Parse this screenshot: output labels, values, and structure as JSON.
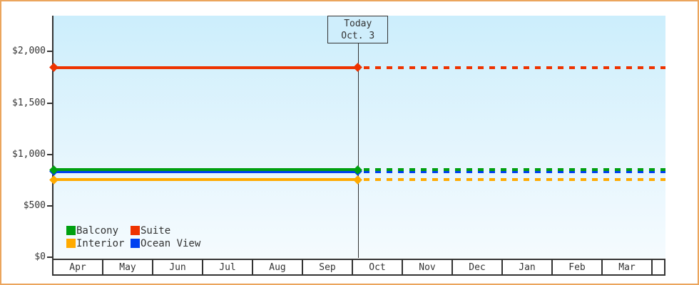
{
  "window": {
    "background": "#ffffff",
    "frame_border_color": "#eba55d",
    "axis_color": "#333333",
    "text_color": "#333333",
    "plot_bg_top": "#cceefc",
    "plot_bg_bottom": "#f5fbfe"
  },
  "chart_data": {
    "type": "line",
    "title": "",
    "xlabel": "",
    "ylabel": "",
    "x_categories": [
      "Apr",
      "May",
      "Jun",
      "Jul",
      "Aug",
      "Sep",
      "Oct",
      "Nov",
      "Dec",
      "Jan",
      "Feb",
      "Mar"
    ],
    "y_tick_labels": [
      "$0",
      "$500",
      "$1,000",
      "$1,500",
      "$2,000"
    ],
    "y_tick_values": [
      0,
      500,
      1000,
      1500,
      2000
    ],
    "ylim": [
      0,
      2350
    ],
    "grid": false,
    "series": [
      {
        "name": "Balcony",
        "color": "#00a010",
        "value": 850,
        "line_style": "solid before today, dotted after"
      },
      {
        "name": "Suite",
        "color": "#ee3300",
        "value": 1845,
        "line_style": "solid before today, dotted after"
      },
      {
        "name": "Interior",
        "color": "#ffaa00",
        "value": 755,
        "line_style": "solid before today, dotted after"
      },
      {
        "name": "Ocean View",
        "color": "#0040f0",
        "value": 835,
        "line_style": "solid before today, dotted after (mostly hidden behind Balcony line)"
      }
    ],
    "annotation": {
      "label_line1": "Today",
      "label_line2": "Oct. 3",
      "month": "Oct",
      "day": 3
    },
    "legend": {
      "position": "bottom-left",
      "rows": [
        [
          "Balcony",
          "Suite"
        ],
        [
          "Interior",
          "Ocean View"
        ]
      ]
    },
    "notes": "Flat cruise-cabin price lines per category; solid history up to Today (Oct. 3), dotted projection afterwards; diamond markers at axis and at today"
  }
}
